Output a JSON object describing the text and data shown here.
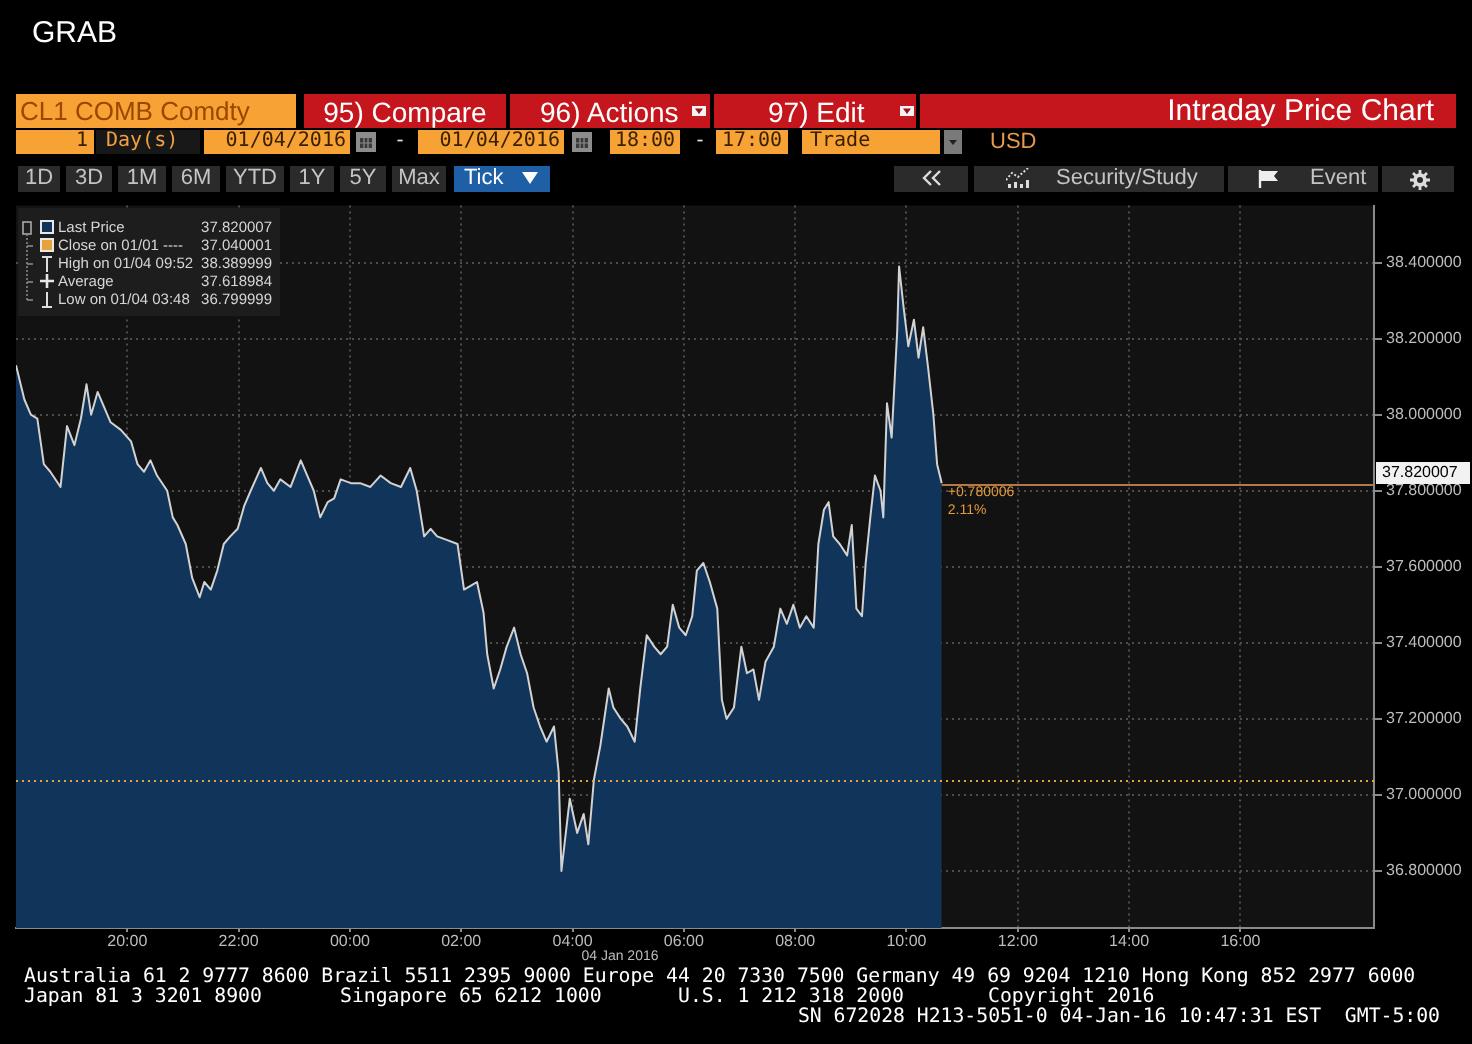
{
  "chart_data": {
    "type": "area",
    "title": "CL1 COMB Comdty",
    "x": [
      "2016-01-03T18:00",
      "2016-01-03T18:09",
      "2016-01-03T18:16",
      "2016-01-03T18:23",
      "2016-01-03T18:30",
      "2016-01-03T18:37",
      "2016-01-03T18:48",
      "2016-01-03T18:55",
      "2016-01-03T19:03",
      "2016-01-03T19:10",
      "2016-01-03T19:16",
      "2016-01-03T19:21",
      "2016-01-03T19:28",
      "2016-01-03T19:35",
      "2016-01-03T19:42",
      "2016-01-03T19:53",
      "2016-01-03T20:04",
      "2016-01-03T20:11",
      "2016-01-03T20:18",
      "2016-01-03T20:25",
      "2016-01-03T20:32",
      "2016-01-03T20:43",
      "2016-01-03T20:49",
      "2016-01-03T20:54",
      "2016-01-03T21:03",
      "2016-01-03T21:10",
      "2016-01-03T21:18",
      "2016-01-03T21:23",
      "2016-01-03T21:30",
      "2016-01-03T21:37",
      "2016-01-03T21:44",
      "2016-01-03T21:51",
      "2016-01-03T21:59",
      "2016-01-03T22:06",
      "2016-01-03T22:13",
      "2016-01-03T22:24",
      "2016-01-03T22:31",
      "2016-01-03T22:38",
      "2016-01-03T22:45",
      "2016-01-03T22:56",
      "2016-01-03T23:07",
      "2016-01-03T23:14",
      "2016-01-03T23:21",
      "2016-01-03T23:28",
      "2016-01-03T23:36",
      "2016-01-03T23:43",
      "2016-01-03T23:50",
      "2016-01-04T00:01",
      "2016-01-04T00:11",
      "2016-01-04T00:22",
      "2016-01-04T00:33",
      "2016-01-04T00:44",
      "2016-01-04T00:55",
      "2016-01-04T01:05",
      "2016-01-04T01:12",
      "2016-01-04T01:20",
      "2016-01-04T01:27",
      "2016-01-04T01:34",
      "2016-01-04T01:45",
      "2016-01-04T01:56",
      "2016-01-04T02:03",
      "2016-01-04T02:10",
      "2016-01-04T02:17",
      "2016-01-04T02:24",
      "2016-01-04T02:28",
      "2016-01-04T02:35",
      "2016-01-04T02:42",
      "2016-01-04T02:49",
      "2016-01-04T02:57",
      "2016-01-04T03:04",
      "2016-01-04T03:11",
      "2016-01-04T03:18",
      "2016-01-04T03:25",
      "2016-01-04T03:32",
      "2016-01-04T03:40",
      "2016-01-04T03:45",
      "2016-01-04T03:48",
      "2016-01-04T03:57",
      "2016-01-04T04:05",
      "2016-01-04T04:12",
      "2016-01-04T04:17",
      "2016-01-04T04:23",
      "2016-01-04T04:30",
      "2016-01-04T04:39",
      "2016-01-04T04:44",
      "2016-01-04T04:52",
      "2016-01-04T04:59",
      "2016-01-04T05:07",
      "2016-01-04T05:13",
      "2016-01-04T05:20",
      "2016-01-04T05:28",
      "2016-01-04T05:35",
      "2016-01-04T05:42",
      "2016-01-04T05:48",
      "2016-01-04T05:55",
      "2016-01-04T06:02",
      "2016-01-04T06:09",
      "2016-01-04T06:14",
      "2016-01-04T06:21",
      "2016-01-04T06:28",
      "2016-01-04T06:36",
      "2016-01-04T06:41",
      "2016-01-04T06:46",
      "2016-01-04T06:54",
      "2016-01-04T07:02",
      "2016-01-04T07:08",
      "2016-01-04T07:15",
      "2016-01-04T07:21",
      "2016-01-04T07:28",
      "2016-01-04T07:37",
      "2016-01-04T07:44",
      "2016-01-04T07:51",
      "2016-01-04T07:58",
      "2016-01-04T08:05",
      "2016-01-04T08:12",
      "2016-01-04T08:20",
      "2016-01-04T08:25",
      "2016-01-04T08:31",
      "2016-01-04T08:36",
      "2016-01-04T08:41",
      "2016-01-04T08:48",
      "2016-01-04T08:56",
      "2016-01-04T09:01",
      "2016-01-04T09:06",
      "2016-01-04T09:12",
      "2016-01-04T09:16",
      "2016-01-04T09:21",
      "2016-01-04T09:26",
      "2016-01-04T09:32",
      "2016-01-04T09:35",
      "2016-01-04T09:39",
      "2016-01-04T09:44",
      "2016-01-04T09:50",
      "2016-01-04T09:52",
      "2016-01-04T09:57",
      "2016-01-04T10:02",
      "2016-01-04T10:08",
      "2016-01-04T10:13",
      "2016-01-04T10:18",
      "2016-01-04T10:23",
      "2016-01-04T10:29",
      "2016-01-04T10:33",
      "2016-01-04T10:38"
    ],
    "series": [
      {
        "name": "Last Price",
        "color": "#11345a",
        "values": [
          38.13,
          38.04,
          38.0,
          37.99,
          37.87,
          37.85,
          37.81,
          37.97,
          37.92,
          37.99,
          38.08,
          38.0,
          38.06,
          38.02,
          37.98,
          37.96,
          37.93,
          37.87,
          37.85,
          37.88,
          37.84,
          37.8,
          37.73,
          37.71,
          37.66,
          37.57,
          37.52,
          37.56,
          37.54,
          37.59,
          37.66,
          37.68,
          37.7,
          37.76,
          37.8,
          37.86,
          37.82,
          37.8,
          37.83,
          37.81,
          37.88,
          37.84,
          37.8,
          37.73,
          37.77,
          37.78,
          37.83,
          37.82,
          37.82,
          37.81,
          37.84,
          37.82,
          37.81,
          37.86,
          37.8,
          37.68,
          37.7,
          37.68,
          37.67,
          37.66,
          37.54,
          37.55,
          37.56,
          37.48,
          37.37,
          37.28,
          37.33,
          37.39,
          37.44,
          37.37,
          37.32,
          37.23,
          37.18,
          37.14,
          37.18,
          37.06,
          36.8,
          36.99,
          36.9,
          36.95,
          36.87,
          37.04,
          37.13,
          37.28,
          37.23,
          37.2,
          37.18,
          37.14,
          37.28,
          37.42,
          37.39,
          37.37,
          37.39,
          37.5,
          37.44,
          37.42,
          37.47,
          37.59,
          37.61,
          37.56,
          37.49,
          37.25,
          37.2,
          37.23,
          37.39,
          37.32,
          37.33,
          37.25,
          37.35,
          37.39,
          37.49,
          37.45,
          37.5,
          37.44,
          37.47,
          37.44,
          37.66,
          37.75,
          37.77,
          37.68,
          37.66,
          37.63,
          37.71,
          37.49,
          37.47,
          37.61,
          37.73,
          37.84,
          37.8,
          37.73,
          38.03,
          37.94,
          38.22,
          38.39,
          38.28,
          38.18,
          38.25,
          38.15,
          38.23,
          38.13,
          38.0,
          37.87,
          37.820007
        ]
      }
    ],
    "xlim": [
      "2016-01-03T18:00",
      "2016-01-04T18:24"
    ],
    "xticks": [
      {
        "value": "2016-01-03T20:00",
        "label": "20:00"
      },
      {
        "value": "2016-01-03T22:00",
        "label": "22:00"
      },
      {
        "value": "2016-01-04T00:00",
        "label": "00:00"
      },
      {
        "value": "2016-01-04T02:00",
        "label": "02:00"
      },
      {
        "value": "2016-01-04T04:00",
        "label": "04:00"
      },
      {
        "value": "2016-01-04T06:00",
        "label": "06:00"
      },
      {
        "value": "2016-01-04T08:00",
        "label": "08:00"
      },
      {
        "value": "2016-01-04T10:00",
        "label": "10:00"
      },
      {
        "value": "2016-01-04T12:00",
        "label": "12:00"
      },
      {
        "value": "2016-01-04T14:00",
        "label": "14:00"
      },
      {
        "value": "2016-01-04T16:00",
        "label": "16:00"
      }
    ],
    "ylim": [
      36.65,
      38.55
    ],
    "yticks": [
      {
        "value": 36.8,
        "label": "36.800000"
      },
      {
        "value": 37.0,
        "label": "37.000000"
      },
      {
        "value": 37.2,
        "label": "37.200000"
      },
      {
        "value": 37.4,
        "label": "37.400000"
      },
      {
        "value": 37.6,
        "label": "37.600000"
      },
      {
        "value": 37.8,
        "label": "37.800000"
      },
      {
        "value": 38.0,
        "label": "38.000000"
      },
      {
        "value": 38.2,
        "label": "38.200000"
      },
      {
        "value": 38.4,
        "label": "38.400000"
      }
    ],
    "ref_lines": [
      {
        "axis": "y",
        "value": 37.040001,
        "label": "Close on 01/01 ----",
        "color": "#e6a23c",
        "line_style": "dotted"
      },
      {
        "axis": "y",
        "value": 37.820007,
        "label": "37.820007",
        "color": "#b5784a",
        "line_style": "solid"
      }
    ],
    "grid": true,
    "legend": "top left",
    "annotations": [
      "GRAB",
      "95) Compare",
      "96) Actions",
      "97) Edit",
      "Intraday Price Chart",
      "1",
      "Day(s)",
      "01/04/2016",
      "-",
      "01/04/2016",
      "18:00",
      "-",
      "17:00",
      "Trade",
      "USD",
      "1D",
      "3D",
      "1M",
      "6M",
      "YTD",
      "1Y",
      "5Y",
      "Max",
      "Tick",
      "Security/Study",
      "Event",
      "37.820007",
      "37.040001",
      "High on 01/04 09:52",
      "38.389999",
      "Average",
      "37.618984",
      "Low on 01/04 03:48",
      "36.799999",
      {
        "text": "+0.780006",
        "x": "2016-01-04T10:38",
        "y": 37.820007
      },
      {
        "text": "2.11%",
        "x": "2016-01-04T10:38",
        "y": 37.820007
      },
      "04 Jan 2016",
      "Australia 61 2 9777 8600 Brazil 5511 2395 9000 Europe 44 20 7330 7500 Germany 49 69 9204 1210 Hong Kong 852 2977 6000",
      "Japan 81 3 3201 8900",
      "Singapore 65 6212 1000",
      "U.S. 1 212 318 2000",
      "Copyright 2016",
      "SN 672028 H213-5051-0 04-Jan-16 10:47:31 EST  GMT-5:00"
    ]
  }
}
